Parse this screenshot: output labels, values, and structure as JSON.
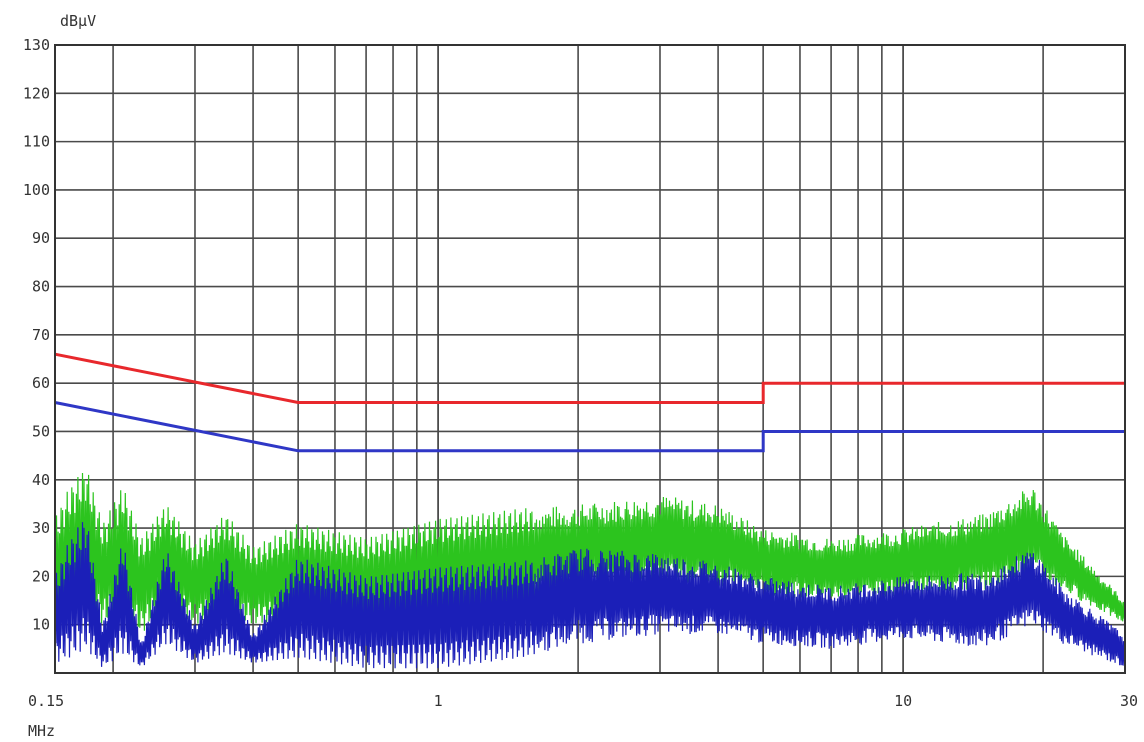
{
  "chart_data": {
    "type": "line",
    "ylabel": "dBμV",
    "xlabel": "MHz",
    "x_scale": "log",
    "xlim": [
      0.15,
      30
    ],
    "ylim": [
      0,
      130
    ],
    "grid": true,
    "x_ticks": [
      {
        "value": 0.15,
        "label": "0.15"
      },
      {
        "value": 1,
        "label": "1"
      },
      {
        "value": 10,
        "label": "10"
      },
      {
        "value": 30,
        "label": "30"
      }
    ],
    "y_ticks": [
      10,
      20,
      30,
      40,
      50,
      60,
      70,
      80,
      90,
      100,
      110,
      120,
      130
    ],
    "series": [
      {
        "color": "#e8282c",
        "x": [
          0.15,
          0.5,
          0.5,
          5,
          5,
          30
        ],
        "y": [
          66,
          56,
          56,
          56,
          60,
          60
        ]
      },
      {
        "color": "#2f37c6",
        "x": [
          0.15,
          0.5,
          0.5,
          5,
          5,
          30
        ],
        "y": [
          56,
          46,
          46,
          46,
          50,
          50
        ]
      },
      {
        "color": "#2cc41e",
        "x": [
          0.15,
          0.16,
          0.175,
          0.19,
          0.21,
          0.23,
          0.26,
          0.3,
          0.35,
          0.4,
          0.5,
          0.7,
          1.0,
          1.5,
          2.0,
          3.0,
          4.0,
          5.0,
          7.0,
          10.0,
          15.0,
          19.0,
          22.0,
          30.0
        ],
        "y": [
          32,
          38,
          43,
          31,
          39,
          28,
          35,
          27,
          33,
          26,
          31,
          28,
          32,
          34,
          35,
          37,
          35,
          30,
          28,
          30,
          33,
          39,
          29,
          15
        ],
        "lower": [
          10,
          12,
          14,
          10,
          12,
          8,
          14,
          10,
          12,
          10,
          11,
          10,
          12,
          14,
          16,
          18,
          18,
          16,
          15,
          16,
          17,
          20,
          17,
          10
        ]
      },
      {
        "color": "#1b1fb8",
        "x": [
          0.15,
          0.16,
          0.175,
          0.19,
          0.21,
          0.23,
          0.26,
          0.3,
          0.35,
          0.4,
          0.5,
          0.7,
          1.0,
          1.5,
          2.0,
          3.0,
          4.0,
          5.0,
          7.0,
          10.0,
          15.0,
          19.0,
          22.0,
          30.0
        ],
        "y": [
          20,
          27,
          33,
          10,
          28,
          6,
          26,
          10,
          25,
          8,
          24,
          20,
          22,
          23,
          26,
          25,
          23,
          20,
          18,
          20,
          21,
          26,
          18,
          8
        ],
        "lower": [
          2,
          3,
          5,
          1,
          4,
          1,
          6,
          2,
          4,
          2,
          3,
          1,
          1,
          3,
          6,
          8,
          8,
          6,
          5,
          7,
          5,
          10,
          6,
          1
        ]
      }
    ]
  }
}
